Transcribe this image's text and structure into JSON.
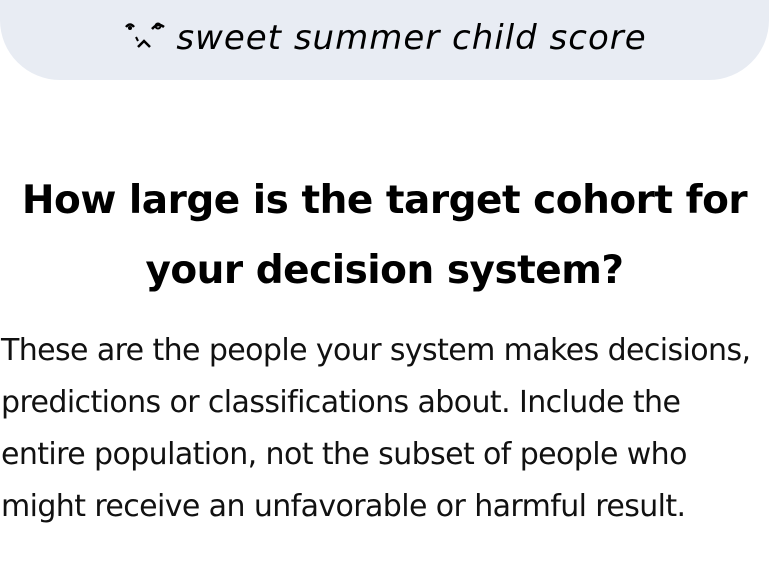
{
  "header": {
    "title": "sweet summer child score",
    "icon": "crying-face-icon"
  },
  "question": {
    "title": "How large is the target cohort for your decision system?",
    "description": "These are the people your system makes decisions, predictions or classifications about. Include the entire population, not the subset of people who might receive an unfavorable or harmful result."
  }
}
